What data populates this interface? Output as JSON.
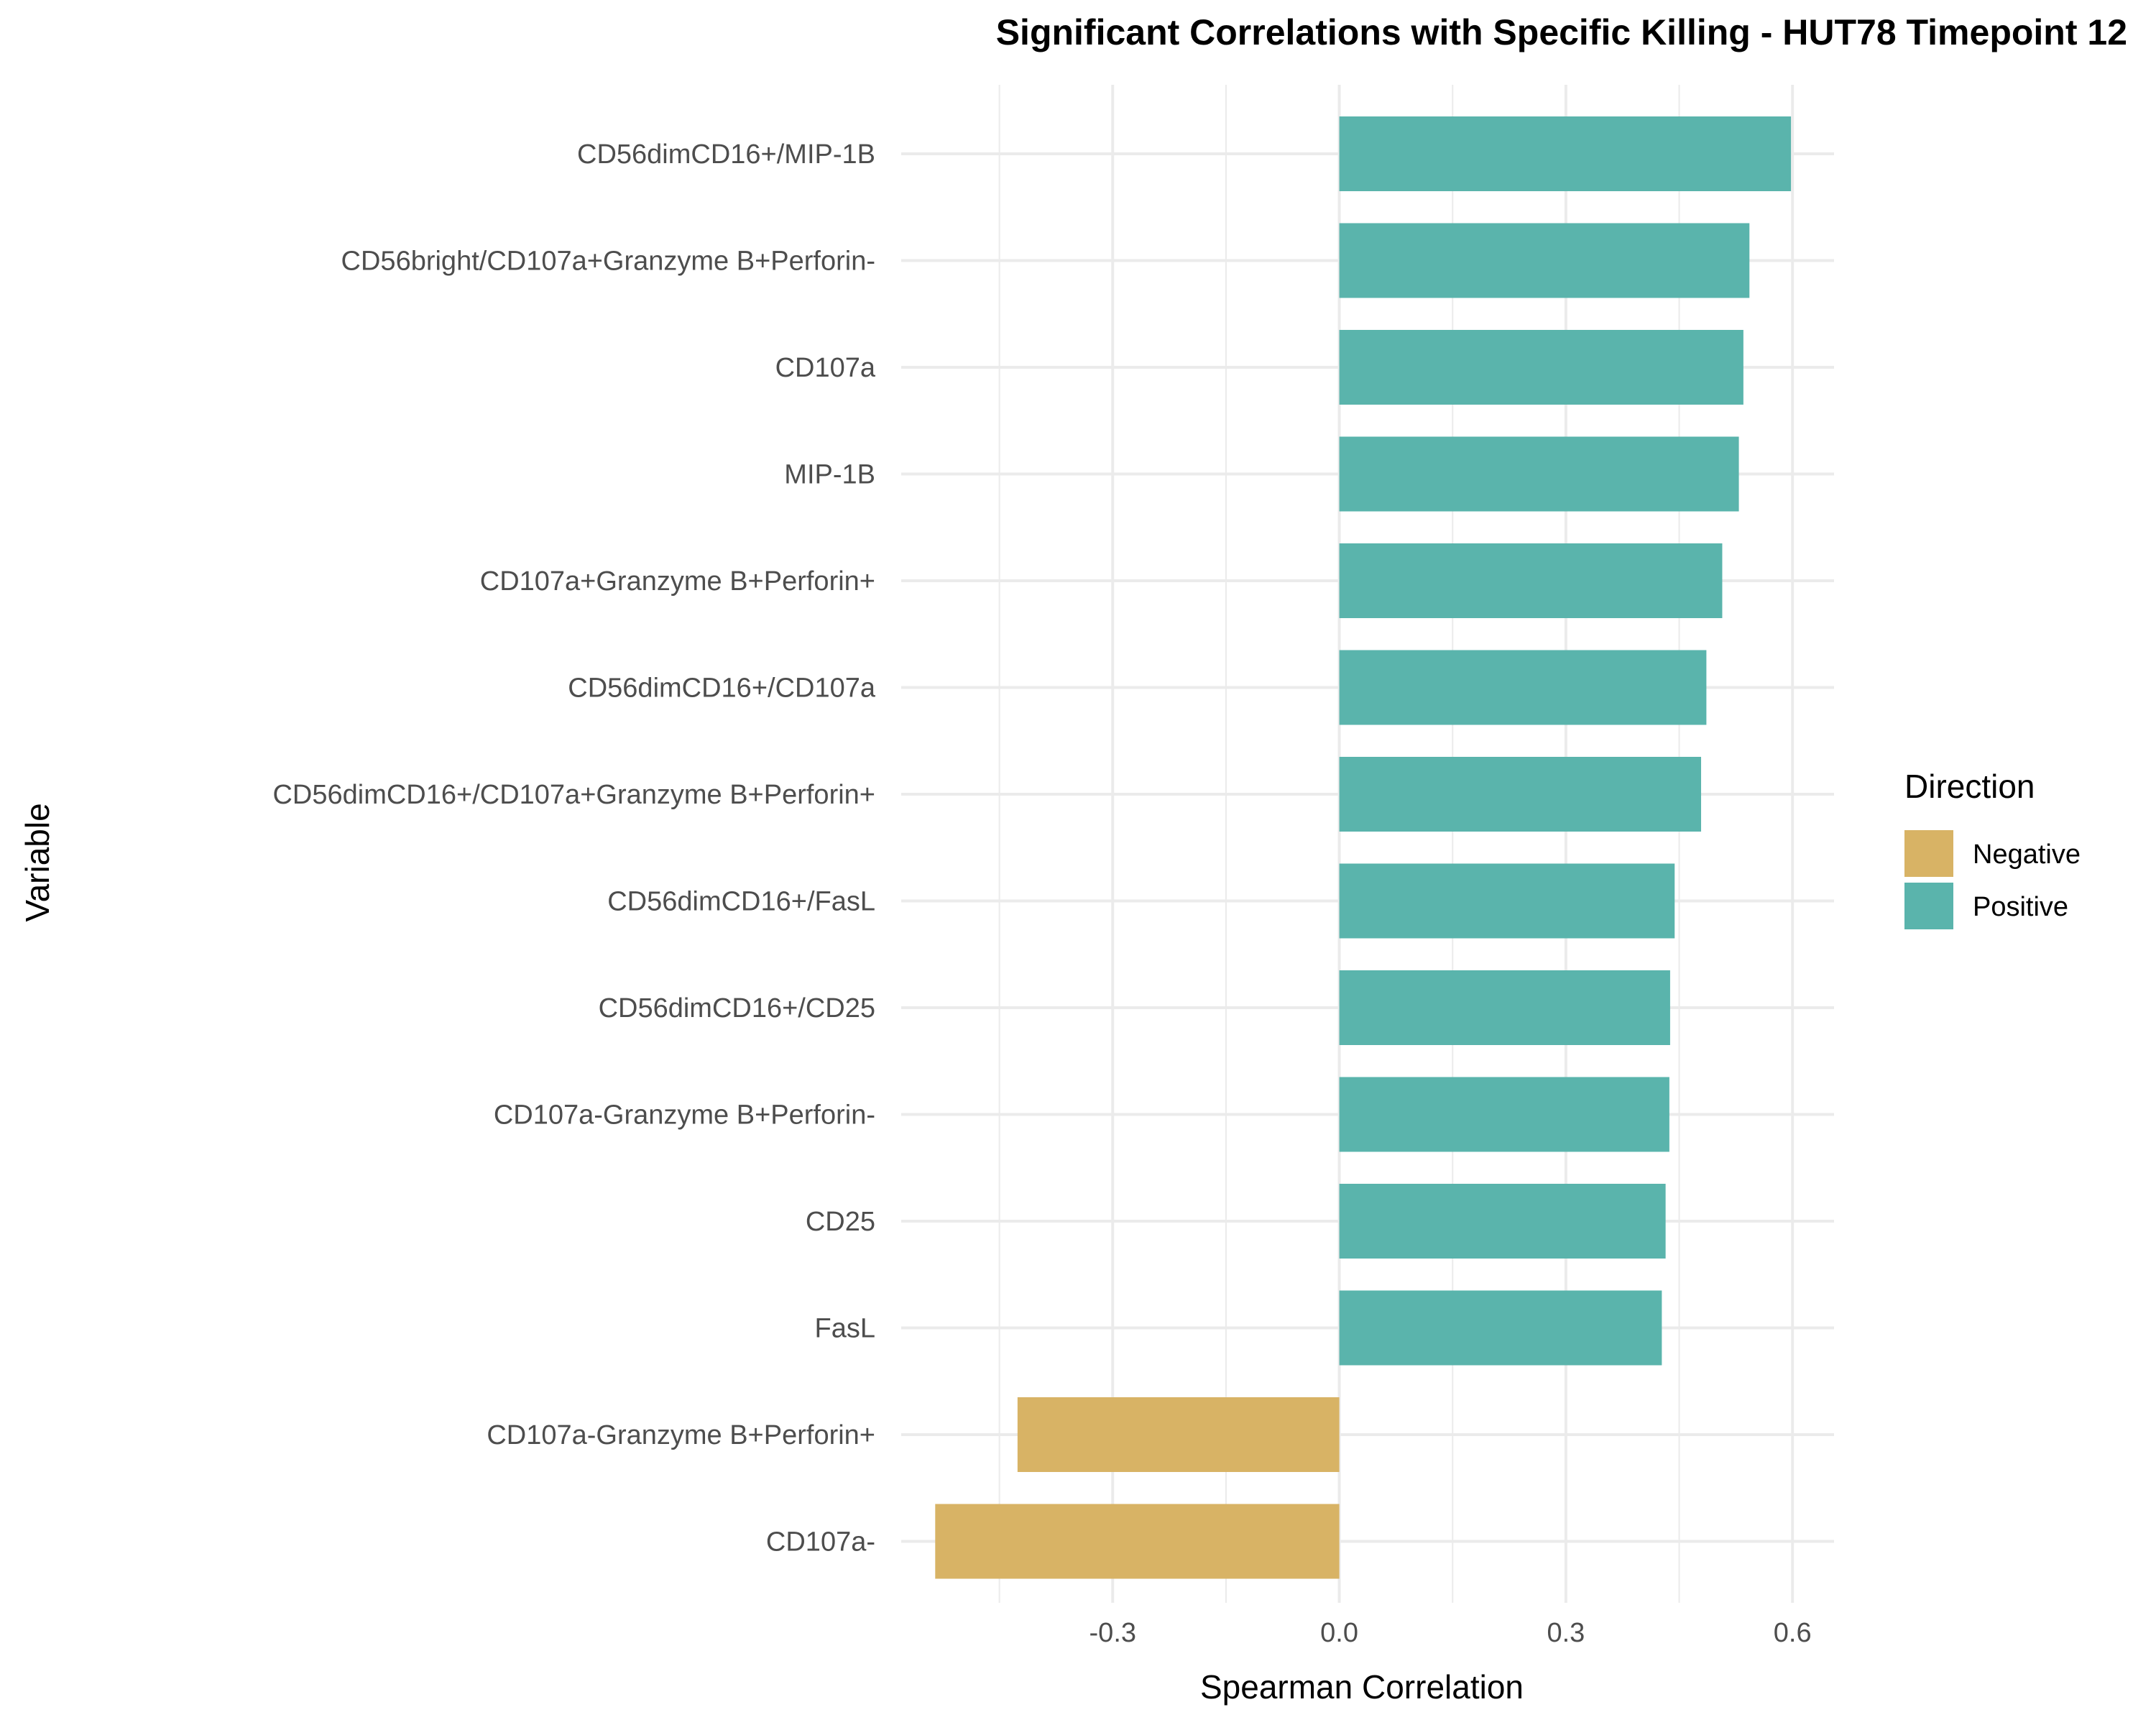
{
  "chart_data": {
    "type": "bar",
    "orientation": "horizontal",
    "title": "Significant Correlations with Specific Killing - HUT78 Timepoint 12",
    "xlabel": "Spearman Correlation",
    "ylabel": "Variable",
    "xlim": [
      -0.58,
      0.655
    ],
    "xticks": [
      -0.3,
      0.0,
      0.3,
      0.6
    ],
    "xtick_labels": [
      "-0.3",
      "0.0",
      "0.3",
      "0.6"
    ],
    "grid": true,
    "legend": {
      "title": "Direction",
      "placement": "right",
      "entries": [
        {
          "label": "Negative",
          "color": "#D8B365"
        },
        {
          "label": "Positive",
          "color": "#5AB4AC"
        }
      ]
    },
    "categories": [
      "CD56dimCD16+/MIP-1B",
      "CD56bright/CD107a+Granzyme B+Perforin-",
      "CD107a",
      "MIP-1B",
      "CD107a+Granzyme B+Perforin+",
      "CD56dimCD16+/CD107a",
      "CD56dimCD16+/CD107a+Granzyme B+Perforin+",
      "CD56dimCD16+/FasL",
      "CD56dimCD16+/CD25",
      "CD107a-Granzyme B+Perforin-",
      "CD25",
      "FasL",
      "CD107a-Granzyme B+Perforin+",
      "CD107a-"
    ],
    "values": [
      0.598,
      0.543,
      0.535,
      0.529,
      0.507,
      0.486,
      0.479,
      0.444,
      0.438,
      0.437,
      0.432,
      0.427,
      -0.426,
      -0.535
    ],
    "directions": [
      "Positive",
      "Positive",
      "Positive",
      "Positive",
      "Positive",
      "Positive",
      "Positive",
      "Positive",
      "Positive",
      "Positive",
      "Positive",
      "Positive",
      "Negative",
      "Negative"
    ]
  }
}
